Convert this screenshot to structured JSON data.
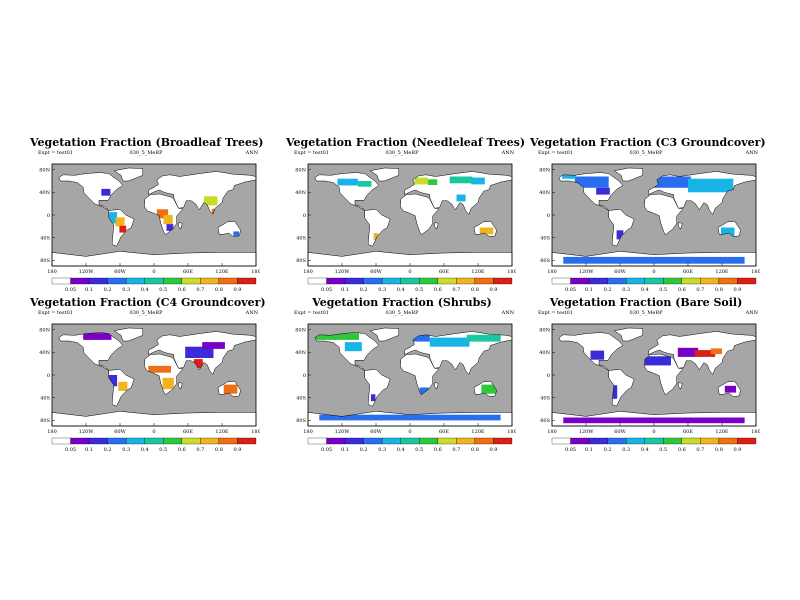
{
  "figure": {
    "experiment_label": "Expt = test01",
    "model_label": "030_5_MeRP",
    "season_label": "ANN"
  },
  "chart_data": [
    {
      "type": "heatmap",
      "title": "Vegetation Fraction (Broadleaf Trees)",
      "lat_ticks": [
        "80N",
        "40N",
        "0",
        "40S",
        "80S"
      ],
      "lon_ticks": [
        "180",
        "120W",
        "60W",
        "0",
        "60E",
        "120E",
        "180"
      ],
      "colorbar_labels": [
        "0.05",
        "0.1",
        "0.2",
        "0.3",
        "0.4",
        "0.5",
        "0.6",
        "0.7",
        "0.8",
        "0.9"
      ],
      "colorbar_colors": [
        "#ffffff",
        "#7a00c8",
        "#3a2cd8",
        "#2a6ef0",
        "#19b4e6",
        "#18c8a0",
        "#2fc83c",
        "#c8dc28",
        "#f0b41e",
        "#f06e14",
        "#dc1e14"
      ]
    },
    {
      "type": "heatmap",
      "title": "Vegetation Fraction (Needleleaf Trees)",
      "lat_ticks": [
        "80N",
        "40N",
        "0",
        "40S",
        "80S"
      ],
      "lon_ticks": [
        "180",
        "120W",
        "60W",
        "0",
        "60E",
        "120E",
        "180"
      ],
      "colorbar_labels": [
        "0.05",
        "0.1",
        "0.2",
        "0.3",
        "0.4",
        "0.5",
        "0.6",
        "0.7",
        "0.8",
        "0.9"
      ],
      "colorbar_colors": [
        "#ffffff",
        "#7a00c8",
        "#3a2cd8",
        "#2a6ef0",
        "#19b4e6",
        "#18c8a0",
        "#2fc83c",
        "#c8dc28",
        "#f0b41e",
        "#f06e14",
        "#dc1e14"
      ]
    },
    {
      "type": "heatmap",
      "title": "Vegetation Fraction (C3 Groundcover)",
      "lat_ticks": [
        "80N",
        "40N",
        "0",
        "40S",
        "80S"
      ],
      "lon_ticks": [
        "180",
        "120W",
        "60W",
        "0",
        "60E",
        "120E",
        "180"
      ],
      "colorbar_labels": [
        "0.05",
        "0.1",
        "0.2",
        "0.3",
        "0.4",
        "0.5",
        "0.6",
        "0.7",
        "0.8",
        "0.9"
      ],
      "colorbar_colors": [
        "#ffffff",
        "#7a00c8",
        "#3a2cd8",
        "#2a6ef0",
        "#19b4e6",
        "#18c8a0",
        "#2fc83c",
        "#c8dc28",
        "#f0b41e",
        "#f06e14",
        "#dc1e14"
      ]
    },
    {
      "type": "heatmap",
      "title": "Vegetation Fraction (C4 Groundcover)",
      "lat_ticks": [
        "80N",
        "40N",
        "0",
        "40S",
        "80S"
      ],
      "lon_ticks": [
        "180",
        "120W",
        "60W",
        "0",
        "60E",
        "120E",
        "180"
      ],
      "colorbar_labels": [
        "0.05",
        "0.1",
        "0.2",
        "0.3",
        "0.4",
        "0.5",
        "0.6",
        "0.7",
        "0.8",
        "0.9"
      ],
      "colorbar_colors": [
        "#ffffff",
        "#7a00c8",
        "#3a2cd8",
        "#2a6ef0",
        "#19b4e6",
        "#18c8a0",
        "#2fc83c",
        "#c8dc28",
        "#f0b41e",
        "#f06e14",
        "#dc1e14"
      ]
    },
    {
      "type": "heatmap",
      "title": "Vegetation Fraction (Shrubs)",
      "lat_ticks": [
        "80N",
        "40N",
        "0",
        "40S",
        "80S"
      ],
      "lon_ticks": [
        "180",
        "120W",
        "60W",
        "0",
        "60E",
        "120E",
        "180"
      ],
      "colorbar_labels": [
        "0.05",
        "0.1",
        "0.2",
        "0.3",
        "0.4",
        "0.5",
        "0.6",
        "0.7",
        "0.8",
        "0.9"
      ],
      "colorbar_colors": [
        "#ffffff",
        "#7a00c8",
        "#3a2cd8",
        "#2a6ef0",
        "#19b4e6",
        "#18c8a0",
        "#2fc83c",
        "#c8dc28",
        "#f0b41e",
        "#f06e14",
        "#dc1e14"
      ]
    },
    {
      "type": "heatmap",
      "title": "Vegetation Fraction (Bare Soil)",
      "lat_ticks": [
        "80N",
        "40N",
        "0",
        "40S",
        "80S"
      ],
      "lon_ticks": [
        "180",
        "120W",
        "60W",
        "0",
        "60E",
        "120E",
        "180"
      ],
      "colorbar_labels": [
        "0.05",
        "0.1",
        "0.2",
        "0.3",
        "0.4",
        "0.5",
        "0.6",
        "0.7",
        "0.8",
        "0.9"
      ],
      "colorbar_colors": [
        "#ffffff",
        "#7a00c8",
        "#3a2cd8",
        "#2a6ef0",
        "#19b4e6",
        "#18c8a0",
        "#2fc83c",
        "#c8dc28",
        "#f0b41e",
        "#f06e14",
        "#dc1e14"
      ]
    }
  ]
}
